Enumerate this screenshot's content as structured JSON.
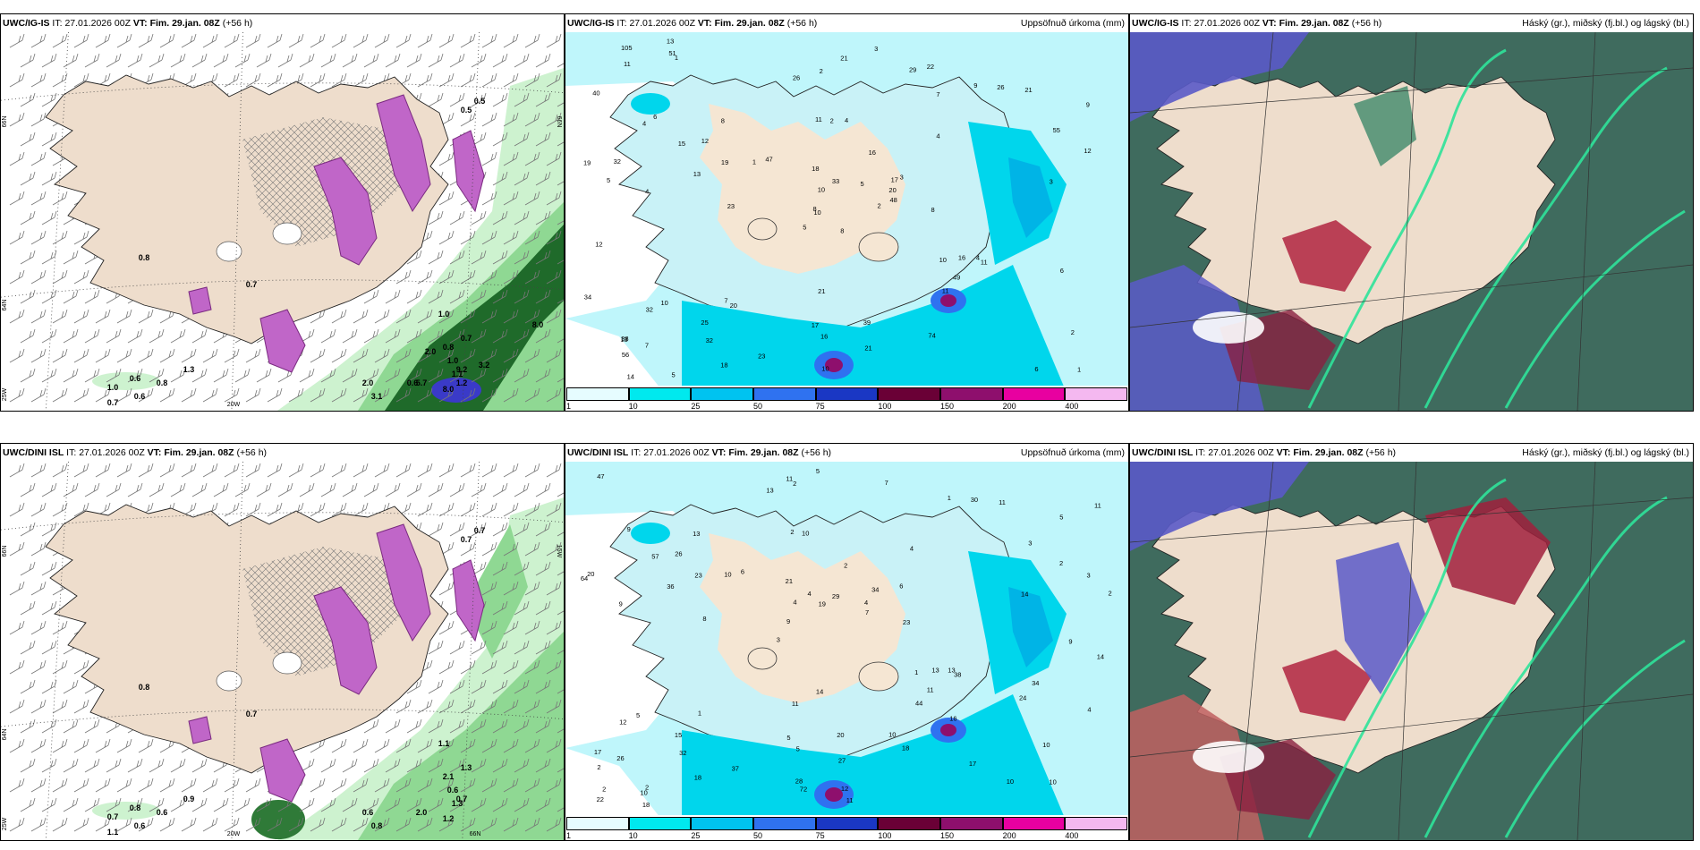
{
  "panels": [
    {
      "model": "UWC/IG-IS",
      "it_label": "IT:",
      "it": "27.01.2026 00Z",
      "vt_label": "VT:",
      "vt": "Fim. 29.jan. 08Z",
      "lead": "(+56 h)",
      "title": ""
    },
    {
      "model": "UWC/IG-IS",
      "it_label": "IT:",
      "it": "27.01.2026 00Z",
      "vt_label": "VT:",
      "vt": "Fim. 29.jan. 08Z",
      "lead": "(+56 h)",
      "title": "Uppsöfnuð úrkoma (mm)"
    },
    {
      "model": "UWC/IG-IS",
      "it_label": "IT:",
      "it": "27.01.2026 00Z",
      "vt_label": "VT:",
      "vt": "Fim. 29.jan. 08Z",
      "lead": "(+56 h)",
      "title": "Háský (gr.), miðský (fj.bl.) og lágský (bl.)"
    },
    {
      "model": "UWC/DINI ISL",
      "it_label": "IT:",
      "it": "27.01.2026 00Z",
      "vt_label": "VT:",
      "vt": "Fim. 29.jan. 08Z",
      "lead": "(+56 h)",
      "title": ""
    },
    {
      "model": "UWC/DINI ISL",
      "it_label": "IT:",
      "it": "27.01.2026 00Z",
      "vt_label": "VT:",
      "vt": "Fim. 29.jan. 08Z",
      "lead": "(+56 h)",
      "title": "Uppsöfnuð úrkoma (mm)"
    },
    {
      "model": "UWC/DINI ISL",
      "it_label": "IT:",
      "it": "27.01.2026 00Z",
      "vt_label": "VT:",
      "vt": "Fim. 29.jan. 08Z",
      "lead": "(+56 h)",
      "title": "Háský (gr.), miðský (fj.bl.) og lágský (bl.)"
    }
  ],
  "colorbar": {
    "ticks": [
      "1",
      "10",
      "25",
      "50",
      "75",
      "100",
      "150",
      "200",
      "400"
    ],
    "colors": [
      "#e6fcff",
      "#00e9ee",
      "#00c3f0",
      "#2f72f0",
      "#1a37c4",
      "#6a0036",
      "#8e0f6d",
      "#e800a0",
      "#f4b8f0"
    ]
  },
  "axis_labels": {
    "p1": [
      "66N",
      "64N",
      "25W",
      "20W",
      "66N"
    ],
    "p4": [
      "66N",
      "64N",
      "25W",
      "20W",
      "15W",
      "66N"
    ]
  },
  "precip_top": [
    "8",
    "4",
    "10",
    "38",
    "17",
    "20",
    "22",
    "4",
    "7",
    "2",
    "1",
    "1",
    "4",
    "9",
    "5",
    "4",
    "5",
    "11",
    "16",
    "10",
    "47",
    "56",
    "32",
    "2",
    "3",
    "11",
    "6",
    "2",
    "5",
    "10",
    "12",
    "8",
    "17",
    "10",
    "8",
    "9",
    "7",
    "6",
    "2",
    "4",
    "3",
    "1",
    "13",
    "11",
    "18",
    "19",
    "20",
    "14",
    "16",
    "48",
    "32",
    "55",
    "40",
    "49",
    "74",
    "25",
    "51",
    "105",
    "39",
    "21",
    "21",
    "23",
    "32",
    "12",
    "26",
    "13",
    "29",
    "26",
    "33",
    "34",
    "21",
    "23",
    "16",
    "19",
    "13",
    "11",
    "15",
    "12",
    "18",
    "21",
    "5",
    "7",
    "8",
    "6",
    "10",
    "3"
  ],
  "precip_bottom": [
    "10",
    "9",
    "5",
    "3",
    "4",
    "2",
    "2",
    "2",
    "5",
    "6",
    "2",
    "32",
    "10",
    "34",
    "38",
    "9",
    "2",
    "2",
    "1",
    "2",
    "9",
    "5",
    "4",
    "13",
    "1",
    "1",
    "10",
    "10",
    "13",
    "11",
    "10",
    "36",
    "44",
    "18",
    "3",
    "4",
    "2",
    "5",
    "7",
    "12",
    "3",
    "11",
    "11",
    "18",
    "15",
    "18",
    "22",
    "20",
    "11",
    "5",
    "8",
    "20",
    "26",
    "30",
    "10",
    "7",
    "13",
    "4",
    "4",
    "11",
    "37",
    "13",
    "23",
    "17",
    "47",
    "57",
    "14",
    "21",
    "27",
    "29",
    "26",
    "23",
    "34",
    "28",
    "14",
    "14",
    "17",
    "12",
    "10",
    "11",
    "9",
    "6",
    "16",
    "19",
    "24",
    "64",
    "72"
  ],
  "p1_values": [
    "0.5",
    "0.5",
    "0.8",
    "0.6",
    "1.0",
    "0.8",
    "1.3",
    "0.7",
    "0.6",
    "1.0",
    "0.8",
    "0.7",
    "2.0",
    "3.1",
    "5.7",
    "8.0",
    "0.7",
    "9.2",
    "1.0",
    "1.1",
    "1.2",
    "3.2",
    "8.0",
    "2.0",
    "0.6"
  ],
  "p4_values": [
    "0.7",
    "0.7",
    "0.8",
    "0.8",
    "0.7",
    "0.6",
    "0.9",
    "1.1",
    "0.6",
    "1.1",
    "2.1",
    "0.7",
    "0.6",
    "0.8",
    "2.0",
    "1.2",
    "1.3",
    "0.7",
    "0.6",
    "1.3"
  ]
}
